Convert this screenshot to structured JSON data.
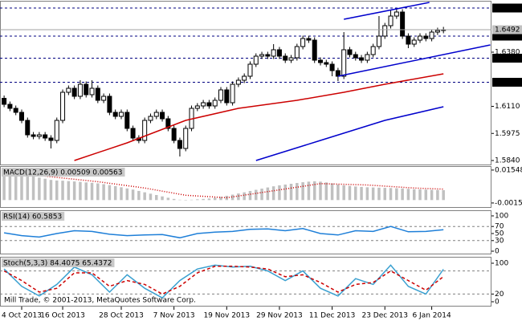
{
  "chart_data": [
    {
      "type": "candlestick",
      "up_color": "#ffffff",
      "down_color": "#000000",
      "open": [
        1.615,
        1.612,
        1.61,
        1.608,
        1.604,
        1.5968,
        1.596,
        1.5968,
        1.5952,
        1.594,
        1.604,
        1.618,
        1.62,
        1.616,
        1.622,
        1.6168,
        1.62,
        1.614,
        1.616,
        1.608,
        1.606,
        1.608,
        1.6,
        1.5952,
        1.594,
        1.604,
        1.606,
        1.608,
        1.6048,
        1.6,
        1.594,
        1.59,
        1.6,
        1.61,
        1.6112,
        1.6128,
        1.6112,
        1.614,
        1.6192,
        1.6128,
        1.622,
        1.624,
        1.626,
        1.632,
        1.636,
        1.6368,
        1.636,
        1.6392,
        1.636,
        1.634,
        1.6352,
        1.6408,
        1.6448,
        1.644,
        1.634,
        1.6328,
        1.632,
        1.6288,
        1.626,
        1.6392,
        1.6368,
        1.6352,
        1.634,
        1.6368,
        1.6408,
        1.646,
        1.6512,
        1.656,
        1.658,
        1.646,
        1.642,
        1.644,
        1.646,
        1.6448,
        1.648,
        1.6488
      ],
      "high": [
        1.6164,
        1.6134,
        1.6114,
        1.6094,
        1.6054,
        1.5982,
        1.5982,
        1.5982,
        1.5966,
        1.6054,
        1.6194,
        1.6214,
        1.6214,
        1.624,
        1.6234,
        1.624,
        1.6214,
        1.6174,
        1.6174,
        1.6094,
        1.6094,
        1.6094,
        1.6014,
        1.5966,
        1.6054,
        1.6074,
        1.6094,
        1.6094,
        1.6062,
        1.6014,
        1.5954,
        1.6014,
        1.6114,
        1.6126,
        1.6142,
        1.6142,
        1.6154,
        1.6206,
        1.6206,
        1.6234,
        1.6254,
        1.6274,
        1.6334,
        1.6374,
        1.6382,
        1.6382,
        1.642,
        1.6406,
        1.6374,
        1.6366,
        1.6422,
        1.6462,
        1.6462,
        1.6454,
        1.6354,
        1.6342,
        1.6334,
        1.6302,
        1.648,
        1.6406,
        1.6382,
        1.6366,
        1.6382,
        1.6422,
        1.656,
        1.6526,
        1.659,
        1.6594,
        1.6594,
        1.6474,
        1.6454,
        1.6474,
        1.6474,
        1.6494,
        1.6502,
        1.6506
      ],
      "low": [
        1.6106,
        1.6086,
        1.6066,
        1.6026,
        1.5954,
        1.5946,
        1.5946,
        1.5938,
        1.59,
        1.5926,
        1.6026,
        1.6166,
        1.6146,
        1.6146,
        1.6154,
        1.6154,
        1.6126,
        1.6126,
        1.6066,
        1.6046,
        1.6046,
        1.5986,
        1.5938,
        1.5926,
        1.5926,
        1.6026,
        1.6046,
        1.6034,
        1.5986,
        1.5926,
        1.586,
        1.5886,
        1.5986,
        1.6086,
        1.6098,
        1.6098,
        1.6098,
        1.6126,
        1.6114,
        1.6114,
        1.6206,
        1.6226,
        1.6246,
        1.6306,
        1.6346,
        1.6346,
        1.6346,
        1.6346,
        1.6326,
        1.6326,
        1.6338,
        1.6394,
        1.6426,
        1.6326,
        1.6314,
        1.6306,
        1.626,
        1.6236,
        1.6246,
        1.6354,
        1.6338,
        1.6326,
        1.6326,
        1.6354,
        1.6394,
        1.6446,
        1.6498,
        1.6546,
        1.6446,
        1.64,
        1.6406,
        1.6426,
        1.6434,
        1.6434,
        1.6466,
        1.6474
      ],
      "close": [
        1.612,
        1.61,
        1.608,
        1.604,
        1.5968,
        1.596,
        1.5968,
        1.5952,
        1.594,
        1.604,
        1.618,
        1.62,
        1.616,
        1.622,
        1.6168,
        1.62,
        1.614,
        1.616,
        1.608,
        1.606,
        1.608,
        1.6,
        1.5952,
        1.594,
        1.604,
        1.606,
        1.608,
        1.6048,
        1.6,
        1.594,
        1.59,
        1.6,
        1.61,
        1.6112,
        1.6128,
        1.6112,
        1.614,
        1.6192,
        1.6128,
        1.622,
        1.624,
        1.626,
        1.632,
        1.636,
        1.6368,
        1.636,
        1.6392,
        1.636,
        1.634,
        1.6352,
        1.6408,
        1.6448,
        1.644,
        1.634,
        1.6328,
        1.632,
        1.6288,
        1.626,
        1.6392,
        1.6368,
        1.6352,
        1.634,
        1.6368,
        1.6408,
        1.646,
        1.6512,
        1.656,
        1.658,
        1.646,
        1.642,
        1.644,
        1.646,
        1.6448,
        1.648,
        1.6488,
        1.6492
      ],
      "xlim": [
        -0.7,
        83.2
      ],
      "xticks": [
        {
          "value": 3,
          "label": "4 Oct 2013"
        },
        {
          "value": 10,
          "label": "16 Oct 2013"
        },
        {
          "value": 20,
          "label": "28 Oct 2013"
        },
        {
          "value": 29,
          "label": "7 Nov 2013"
        },
        {
          "value": 38,
          "label": "19 Nov 2013"
        },
        {
          "value": 47,
          "label": "29 Nov 2013"
        },
        {
          "value": 56,
          "label": "11 Dec 2013"
        },
        {
          "value": 65,
          "label": "23 Dec 2013"
        },
        {
          "value": 73,
          "label": "6 Jan 2014"
        }
      ],
      "ylim": [
        1.582,
        1.6632
      ],
      "yticks": [
        {
          "value": 1.584,
          "label": "1.5840"
        },
        1.5975,
        {
          "value": 1.611,
          "label": "1.6110"
        },
        {
          "value": 1.638,
          "label": "1.6380"
        }
      ],
      "levels": [
        {
          "value": 1.623,
          "label": "1.6230"
        },
        {
          "value": 1.635,
          "label": "1.6350"
        },
        {
          "value": 1.646,
          "label": "1.6460"
        },
        {
          "value": 1.66,
          "label": "1.6600"
        }
      ],
      "last_price": 1.6492,
      "series": [
        {
          "color": "#cc0000",
          "x": [
            12,
            21,
            31,
            40,
            50,
            58,
            65,
            75
          ],
          "values": [
            1.584,
            1.5928,
            1.604,
            1.61,
            1.614,
            1.618,
            1.622,
            1.6272
          ]
        },
        {
          "color": "#0000cc",
          "x": [
            43,
            54,
            65,
            75
          ],
          "values": [
            1.584,
            1.594,
            1.604,
            1.6108
          ]
        }
      ],
      "trendlines": [
        {
          "color": "#0000cc",
          "x": [
            58,
            72.6
          ],
          "values": [
            1.6544,
            1.6628
          ]
        },
        {
          "color": "#0000cc",
          "x": [
            57,
            83
          ],
          "values": [
            1.626,
            1.6416
          ]
        }
      ]
    },
    {
      "type": "bar",
      "label": "MACD(12,26,9) 0.00509 0.00563",
      "color": "#c0c0c0",
      "values": [
        0.0142,
        0.014,
        0.0137,
        0.0133,
        0.0128,
        0.0122,
        0.0116,
        0.011,
        0.0104,
        0.0101,
        0.01,
        0.0098,
        0.0096,
        0.0094,
        0.0091,
        0.0089,
        0.0086,
        0.0082,
        0.0077,
        0.0072,
        0.0066,
        0.006,
        0.0054,
        0.0047,
        0.004,
        0.0033,
        0.0026,
        0.0019,
        0.0012,
        0.0006,
        0.0002,
        0.0,
        0.0002,
        0.0004,
        0.0006,
        0.0008,
        0.0012,
        0.0017,
        0.0022,
        0.0028,
        0.0034,
        0.004,
        0.0047,
        0.0053,
        0.0059,
        0.0065,
        0.0071,
        0.0076,
        0.008,
        0.0084,
        0.0088,
        0.0092,
        0.0095,
        0.0097,
        0.0095,
        0.0091,
        0.0086,
        0.008,
        0.0076,
        0.0073,
        0.007,
        0.0068,
        0.0066,
        0.0065,
        0.0064,
        0.0063,
        0.0062,
        0.0061,
        0.006,
        0.0058,
        0.0056,
        0.0055,
        0.0054,
        0.0053,
        0.0052,
        0.00509
      ],
      "series": [
        {
          "color": "#cc0000",
          "style": "dotted",
          "x": [
            0,
            8,
            16,
            24,
            31,
            38,
            46,
            54,
            62,
            70,
            75
          ],
          "values": [
            0.015,
            0.012,
            0.0095,
            0.0062,
            0.0025,
            0.0012,
            0.0048,
            0.0085,
            0.0078,
            0.0062,
            0.00563
          ]
        }
      ],
      "ylim": [
        -0.0036,
        0.0171
      ],
      "yticks": [
        -0.0015,
        0.01548
      ]
    },
    {
      "type": "line",
      "label": "RSI(14) 60.5853",
      "series": [
        {
          "color": "#1e7fd8",
          "style": "solid",
          "x": [
            0,
            3,
            6,
            9,
            12,
            15,
            18,
            21,
            24,
            27,
            30,
            33,
            36,
            39,
            42,
            45,
            48,
            51,
            54,
            57,
            60,
            63,
            66,
            69,
            72,
            75
          ],
          "values": [
            52,
            44,
            40,
            50,
            58,
            56,
            48,
            44,
            46,
            47,
            38,
            50,
            54,
            56,
            62,
            63,
            58,
            64,
            50,
            46,
            58,
            56,
            70,
            55,
            56,
            60.5853
          ]
        }
      ],
      "levels": [
        30,
        70
      ],
      "ylim": [
        -6.8,
        113.6
      ],
      "yticks": [
        0,
        30,
        50,
        70,
        100
      ]
    },
    {
      "type": "line",
      "label": "Stoch(5,3,3) 84.4075 65.4372",
      "annotation": "Mill Trade, © 2001-2013, MetaQuotes Software Corp.",
      "series": [
        {
          "color": "#3aa0d0",
          "style": "solid",
          "x": [
            0,
            3,
            6,
            9,
            12,
            15,
            18,
            21,
            24,
            27,
            30,
            33,
            36,
            39,
            42,
            45,
            48,
            51,
            54,
            57,
            60,
            63,
            66,
            69,
            72,
            75
          ],
          "values": [
            85,
            40,
            15,
            45,
            90,
            70,
            25,
            70,
            35,
            10,
            55,
            85,
            95,
            90,
            92,
            80,
            55,
            80,
            35,
            15,
            60,
            45,
            95,
            40,
            20,
            84.4075
          ]
        },
        {
          "color": "#cc0000",
          "style": "dashed",
          "x": [
            0,
            3,
            6,
            9,
            12,
            15,
            18,
            21,
            24,
            27,
            30,
            33,
            36,
            39,
            42,
            45,
            48,
            51,
            54,
            57,
            60,
            63,
            66,
            69,
            72,
            75
          ],
          "values": [
            80,
            55,
            25,
            35,
            75,
            75,
            40,
            55,
            45,
            20,
            40,
            75,
            92,
            92,
            90,
            85,
            65,
            70,
            50,
            25,
            45,
            50,
            80,
            55,
            30,
            65.4372
          ]
        }
      ],
      "levels": [
        20,
        80
      ],
      "ylim": [
        -10.4,
        114.6
      ],
      "yticks": [
        0,
        20,
        100
      ]
    }
  ]
}
